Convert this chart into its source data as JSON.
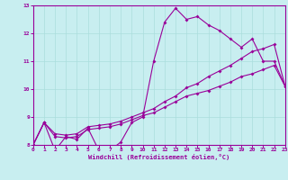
{
  "xlabel": "Windchill (Refroidissement éolien,°C)",
  "xlim": [
    0,
    23
  ],
  "ylim": [
    8,
    13
  ],
  "xticks": [
    0,
    1,
    2,
    3,
    4,
    5,
    6,
    7,
    8,
    9,
    10,
    11,
    12,
    13,
    14,
    15,
    16,
    17,
    18,
    19,
    20,
    21,
    22,
    23
  ],
  "yticks": [
    8,
    9,
    10,
    11,
    12,
    13
  ],
  "bg_color": "#c8eef0",
  "line_color": "#990099",
  "grid_color": "#aadddd",
  "line1_x": [
    0,
    1,
    2,
    3,
    4,
    5,
    6,
    7,
    8,
    9,
    10,
    11,
    12,
    13,
    14,
    15,
    16,
    17,
    18,
    19,
    20,
    21,
    22,
    23
  ],
  "line1_y": [
    8.0,
    8.8,
    7.8,
    8.3,
    8.2,
    8.6,
    7.8,
    7.8,
    8.1,
    8.8,
    9.0,
    11.0,
    12.4,
    12.9,
    12.5,
    12.6,
    12.3,
    12.1,
    11.8,
    11.5,
    11.8,
    11.0,
    11.0,
    10.1
  ],
  "line2_x": [
    0,
    1,
    2,
    3,
    4,
    5,
    6,
    7,
    8,
    9,
    10,
    11,
    12,
    13,
    14,
    15,
    16,
    17,
    18,
    19,
    20,
    21,
    22,
    23
  ],
  "line2_y": [
    8.0,
    8.8,
    8.3,
    8.25,
    8.3,
    8.55,
    8.6,
    8.65,
    8.75,
    8.9,
    9.05,
    9.15,
    9.35,
    9.55,
    9.75,
    9.85,
    9.95,
    10.1,
    10.25,
    10.45,
    10.55,
    10.7,
    10.85,
    10.1
  ],
  "line3_x": [
    0,
    1,
    2,
    3,
    4,
    5,
    6,
    7,
    8,
    9,
    10,
    11,
    12,
    13,
    14,
    15,
    16,
    17,
    18,
    19,
    20,
    21,
    22,
    23
  ],
  "line3_y": [
    8.0,
    8.8,
    8.4,
    8.35,
    8.4,
    8.65,
    8.7,
    8.75,
    8.85,
    9.0,
    9.15,
    9.3,
    9.55,
    9.75,
    10.05,
    10.2,
    10.45,
    10.65,
    10.85,
    11.1,
    11.35,
    11.45,
    11.6,
    10.1
  ]
}
